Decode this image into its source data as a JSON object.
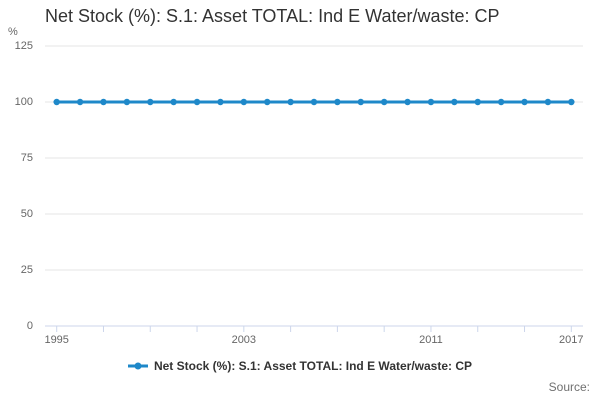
{
  "header": {
    "title": "Net Stock (%): S.1: Asset TOTAL: Ind E Water/waste: CP"
  },
  "legend": {
    "label": "Net Stock (%): S.1: Asset TOTAL: Ind E Water/waste: CP"
  },
  "footer": {
    "source_label": "Source:"
  },
  "colors": {
    "series": "#1e88c9",
    "grid": "#e6e6e6",
    "axis": "#ccd6eb",
    "muted_text": "#666666",
    "title_text": "#333333",
    "source_text": "#707070",
    "background": "#ffffff"
  },
  "chart_data": {
    "type": "line",
    "title": "Net Stock (%): S.1: Asset TOTAL: Ind E Water/waste: CP",
    "ylabel": "%",
    "xlabel": "",
    "ylim": [
      0,
      125
    ],
    "yticks": [
      0,
      25,
      50,
      75,
      100,
      125
    ],
    "x": [
      1995,
      1996,
      1997,
      1998,
      1999,
      2000,
      2001,
      2002,
      2003,
      2004,
      2005,
      2006,
      2007,
      2008,
      2009,
      2010,
      2011,
      2012,
      2013,
      2014,
      2015,
      2016,
      2017
    ],
    "series": [
      {
        "name": "Net Stock (%): S.1: Asset TOTAL: Ind E Water/waste: CP",
        "values": [
          100,
          100,
          100,
          100,
          100,
          100,
          100,
          100,
          100,
          100,
          100,
          100,
          100,
          100,
          100,
          100,
          100,
          100,
          100,
          100,
          100,
          100,
          100
        ]
      }
    ],
    "xtick_labeled_years": [
      1995,
      2003,
      2011,
      2017
    ],
    "xtick_interval_years": 2,
    "grid": true,
    "legend_position": "bottom",
    "marker": "circle"
  }
}
